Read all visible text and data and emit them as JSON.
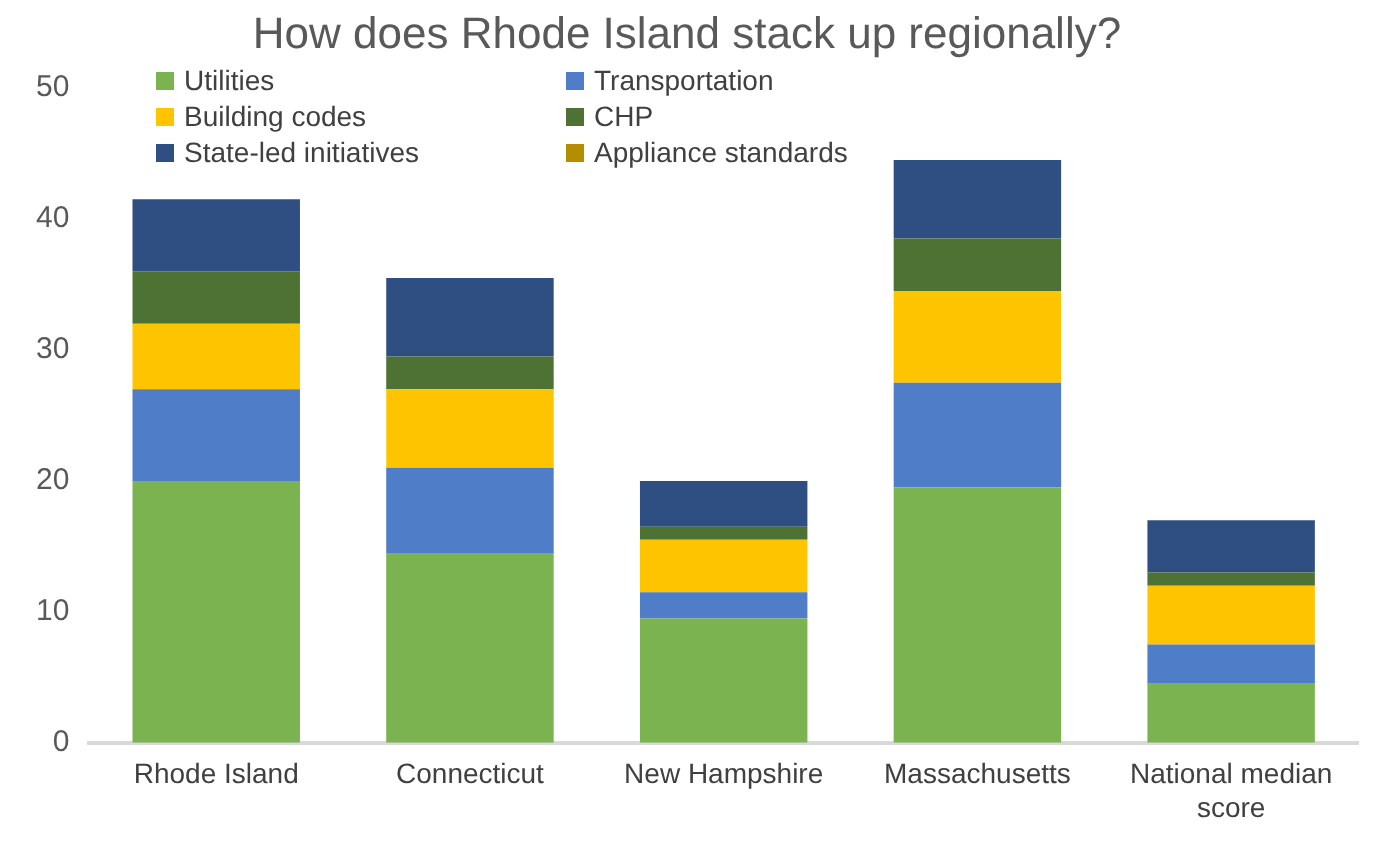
{
  "chart_data": {
    "type": "bar",
    "title": "How does Rhode Island stack up regionally?",
    "categories": [
      "Rhode Island",
      "Connecticut",
      "New Hampshire",
      "Massachusetts",
      "National median score"
    ],
    "stacked": true,
    "series": [
      {
        "name": "Utilities",
        "color": "#7cb351",
        "values": [
          20,
          14.5,
          9.5,
          19.5,
          4.5
        ]
      },
      {
        "name": "Transportation",
        "color": "#4f7dc8",
        "values": [
          7,
          6.5,
          2,
          8,
          3
        ]
      },
      {
        "name": "Building codes",
        "color": "#ffc400",
        "values": [
          5,
          6,
          4,
          7,
          4.5
        ]
      },
      {
        "name": "CHP",
        "color": "#4e7233",
        "values": [
          4,
          2.5,
          1,
          4,
          1
        ]
      },
      {
        "name": "State-led initiatives",
        "color": "#2f4f82",
        "values": [
          5.5,
          6,
          3.5,
          6,
          4
        ]
      },
      {
        "name": "Appliance standards",
        "color": "#b58d00",
        "values": [
          0,
          0,
          0,
          0,
          0
        ]
      }
    ],
    "ylim": [
      0,
      50
    ],
    "yticks": [
      0,
      10,
      20,
      30,
      40,
      50
    ],
    "grid": false,
    "legend": "top left"
  }
}
